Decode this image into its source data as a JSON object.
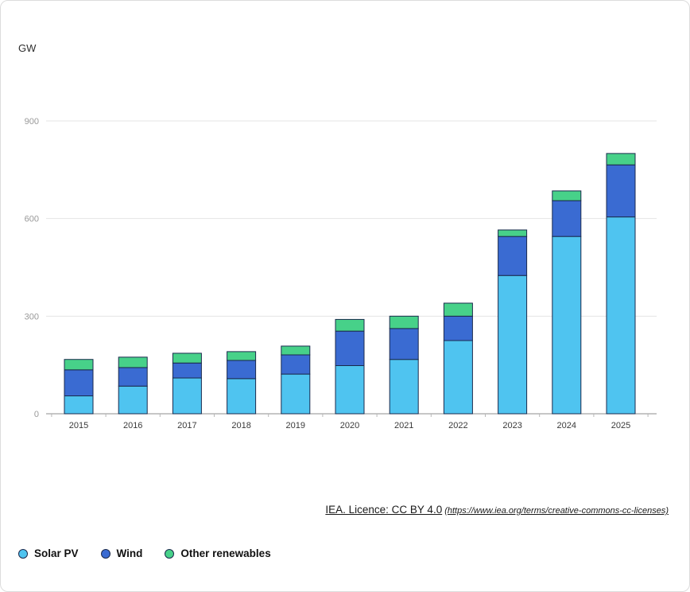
{
  "colors": {
    "solar": "#4fc4f0",
    "wind": "#3a6bd2",
    "other": "#47d189",
    "outline": "#1b2a4d",
    "grid": "#e4e4e4",
    "axis": "#8c8c8c",
    "tick_label": "#999999",
    "year_label": "#3a3a3a",
    "boundary_tick": "#b8b8b8"
  },
  "chart_data": {
    "type": "bar",
    "stacked": true,
    "title": "",
    "ylabel": "GW",
    "ylim": [
      0,
      900
    ],
    "yticks": [
      0,
      300,
      600,
      900
    ],
    "grid": true,
    "legend_position": "bottom-left",
    "categories": [
      "2015",
      "2016",
      "2017",
      "2018",
      "2019",
      "2020",
      "2021",
      "2022",
      "2023",
      "2024",
      "2025"
    ],
    "series": [
      {
        "name": "Solar PV",
        "color_key": "solar",
        "values": [
          55,
          85,
          110,
          108,
          122,
          148,
          167,
          225,
          425,
          545,
          605
        ]
      },
      {
        "name": "Wind",
        "color_key": "wind",
        "values": [
          80,
          57,
          46,
          56,
          59,
          106,
          95,
          75,
          120,
          110,
          160
        ]
      },
      {
        "name": "Other renewables",
        "color_key": "other",
        "values": [
          32,
          32,
          30,
          27,
          27,
          36,
          38,
          40,
          20,
          30,
          35
        ]
      }
    ]
  },
  "attribution": {
    "text": "IEA. Licence: CC BY 4.0",
    "url_text": "(https://www.iea.org/terms/creative-commons-cc-licenses)"
  }
}
